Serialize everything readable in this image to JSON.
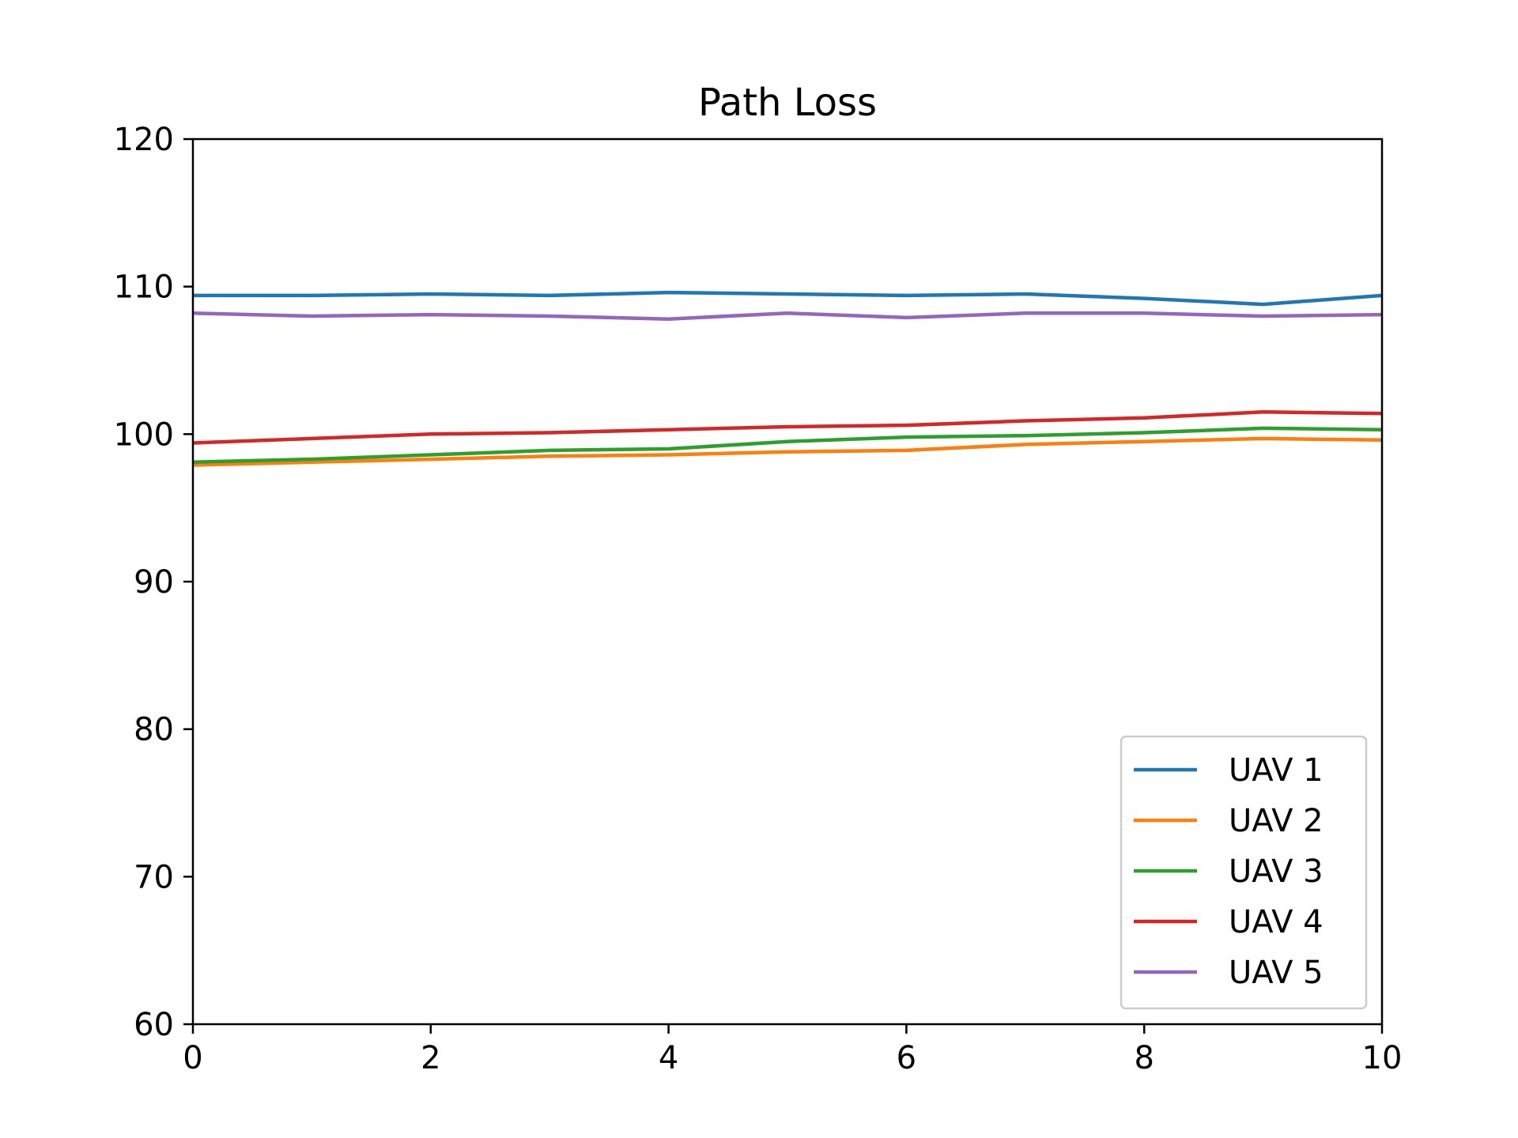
{
  "chart_data": {
    "type": "line",
    "title": "Path Loss",
    "xlabel": "",
    "ylabel": "",
    "xlim": [
      0,
      10
    ],
    "ylim": [
      60,
      120
    ],
    "xticks": [
      0,
      2,
      4,
      6,
      8,
      10
    ],
    "xtick_labels": [
      "0",
      "2",
      "4",
      "6",
      "8",
      "10"
    ],
    "yticks": [
      60,
      70,
      80,
      90,
      100,
      110,
      120
    ],
    "ytick_labels": [
      "60",
      "70",
      "80",
      "90",
      "100",
      "110",
      "120"
    ],
    "grid": false,
    "legend_position": "bottom-right",
    "x": [
      0,
      1,
      2,
      3,
      4,
      5,
      6,
      7,
      8,
      9,
      10
    ],
    "series": [
      {
        "name": "UAV 1",
        "color": "#1f77b4",
        "values": [
          109.4,
          109.4,
          109.5,
          109.4,
          109.6,
          109.5,
          109.4,
          109.5,
          109.2,
          108.8,
          109.4
        ]
      },
      {
        "name": "UAV 2",
        "color": "#ff7f0e",
        "values": [
          97.9,
          98.1,
          98.3,
          98.5,
          98.6,
          98.8,
          98.9,
          99.3,
          99.5,
          99.7,
          99.6
        ]
      },
      {
        "name": "UAV 3",
        "color": "#2ca02c",
        "values": [
          98.1,
          98.3,
          98.6,
          98.9,
          99.0,
          99.5,
          99.8,
          99.9,
          100.1,
          100.4,
          100.3
        ]
      },
      {
        "name": "UAV 4",
        "color": "#d62728",
        "values": [
          99.4,
          99.7,
          100.0,
          100.1,
          100.3,
          100.5,
          100.6,
          100.9,
          101.1,
          101.5,
          101.4
        ]
      },
      {
        "name": "UAV 5",
        "color": "#9467bd",
        "values": [
          108.2,
          108.0,
          108.1,
          108.0,
          107.8,
          108.2,
          107.9,
          108.2,
          108.2,
          108.0,
          108.1
        ]
      }
    ]
  }
}
